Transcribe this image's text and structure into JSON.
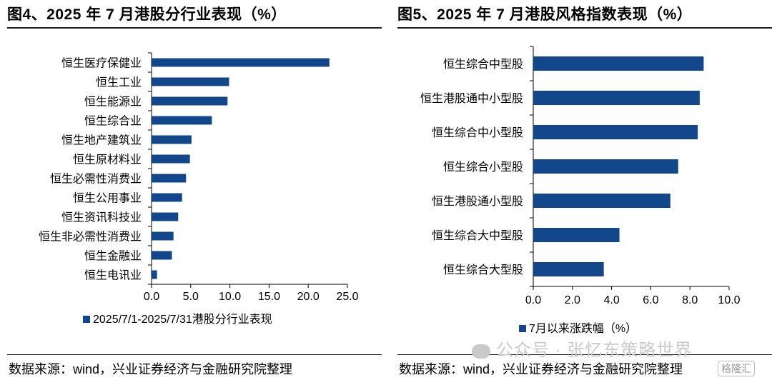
{
  "panels": [
    {
      "title": "图4、2025 年 7 月港股分行业表现（%）",
      "source": "数据来源：wind，兴业证券经济与金融研究院整理"
    },
    {
      "title": "图5、2025 年 7 月港股风格指数表现（%）",
      "source": "数据来源：wind，兴业证券经济与金融研究院整理"
    }
  ],
  "watermark": "公众号 · 张忆东策略世界",
  "badge": "格隆汇",
  "colors": {
    "bar": "#12478c",
    "axis": "#000000",
    "text": "#000000"
  },
  "chart_data": [
    {
      "type": "bar",
      "orientation": "horizontal",
      "categories": [
        "恒生医疗保健业",
        "恒生工业",
        "恒生能源业",
        "恒生综合业",
        "恒生地产建筑业",
        "恒生原材料业",
        "恒生必需性消费业",
        "恒生公用事业",
        "恒生资讯科技业",
        "恒生非必需性消费业",
        "恒生金融业",
        "恒生电讯业"
      ],
      "series": [
        {
          "name": "2025/7/1-2025/7/31港股分行业表现",
          "values": [
            22.7,
            9.9,
            9.7,
            7.7,
            5.1,
            4.9,
            4.4,
            3.9,
            3.4,
            2.8,
            2.6,
            0.7
          ]
        }
      ],
      "xlim": [
        0,
        25
      ],
      "xticks": [
        "0.0",
        "5.0",
        "10.0",
        "15.0",
        "20.0",
        "25.0"
      ],
      "xtick_values": [
        0,
        5,
        10,
        15,
        20,
        25
      ],
      "grid": false,
      "legend_position": "bottom"
    },
    {
      "type": "bar",
      "orientation": "horizontal",
      "categories": [
        "恒生综合中型股",
        "恒生港股通中小型股",
        "恒生综合中小型股",
        "恒生综合小型股",
        "恒生港股通小型股",
        "恒生综合大中型股",
        "恒生综合大型股"
      ],
      "series": [
        {
          "name": "7月以来涨跌幅（%）",
          "values": [
            8.7,
            8.5,
            8.4,
            7.4,
            7.0,
            4.4,
            3.6
          ]
        }
      ],
      "xlim": [
        0,
        10
      ],
      "xticks": [
        "0.0",
        "2.0",
        "4.0",
        "6.0",
        "8.0",
        "10.0"
      ],
      "xtick_values": [
        0,
        2,
        4,
        6,
        8,
        10
      ],
      "grid": false,
      "legend_position": "bottom"
    }
  ]
}
